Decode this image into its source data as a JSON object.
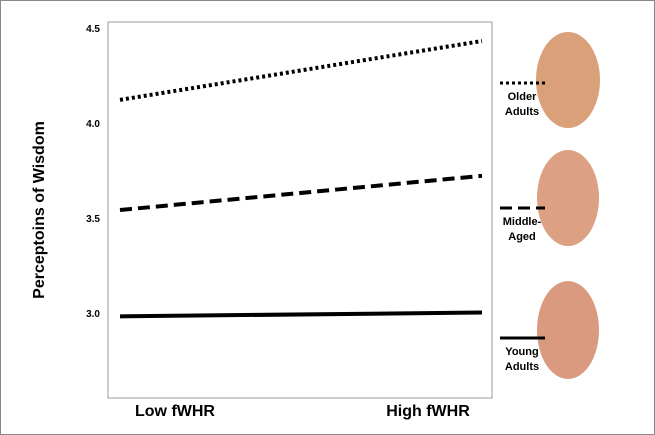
{
  "chart_data": {
    "type": "line",
    "y_label": "Perceptoins of Wisdom",
    "categories": [
      "Low fWHR",
      "High fWHR"
    ],
    "series": [
      {
        "name": "Older Adults",
        "color": "#000000",
        "style": "dotted",
        "values": [
          4.13,
          4.44
        ]
      },
      {
        "name": "Middle-Aged",
        "color": "#000000",
        "style": "dashed",
        "values": [
          3.55,
          3.73
        ]
      },
      {
        "name": "Young Adults",
        "color": "#000000",
        "style": "solid",
        "values": [
          2.99,
          3.01
        ]
      }
    ],
    "ylim": [
      2.56,
      4.54
    ],
    "yticks": [
      {
        "value": 3.0,
        "label": "3.0"
      },
      {
        "value": 3.5,
        "label": "3.5"
      },
      {
        "value": 4.0,
        "label": "4.0"
      },
      {
        "value": 4.5,
        "label": "4.5"
      }
    ],
    "grid": false
  }
}
